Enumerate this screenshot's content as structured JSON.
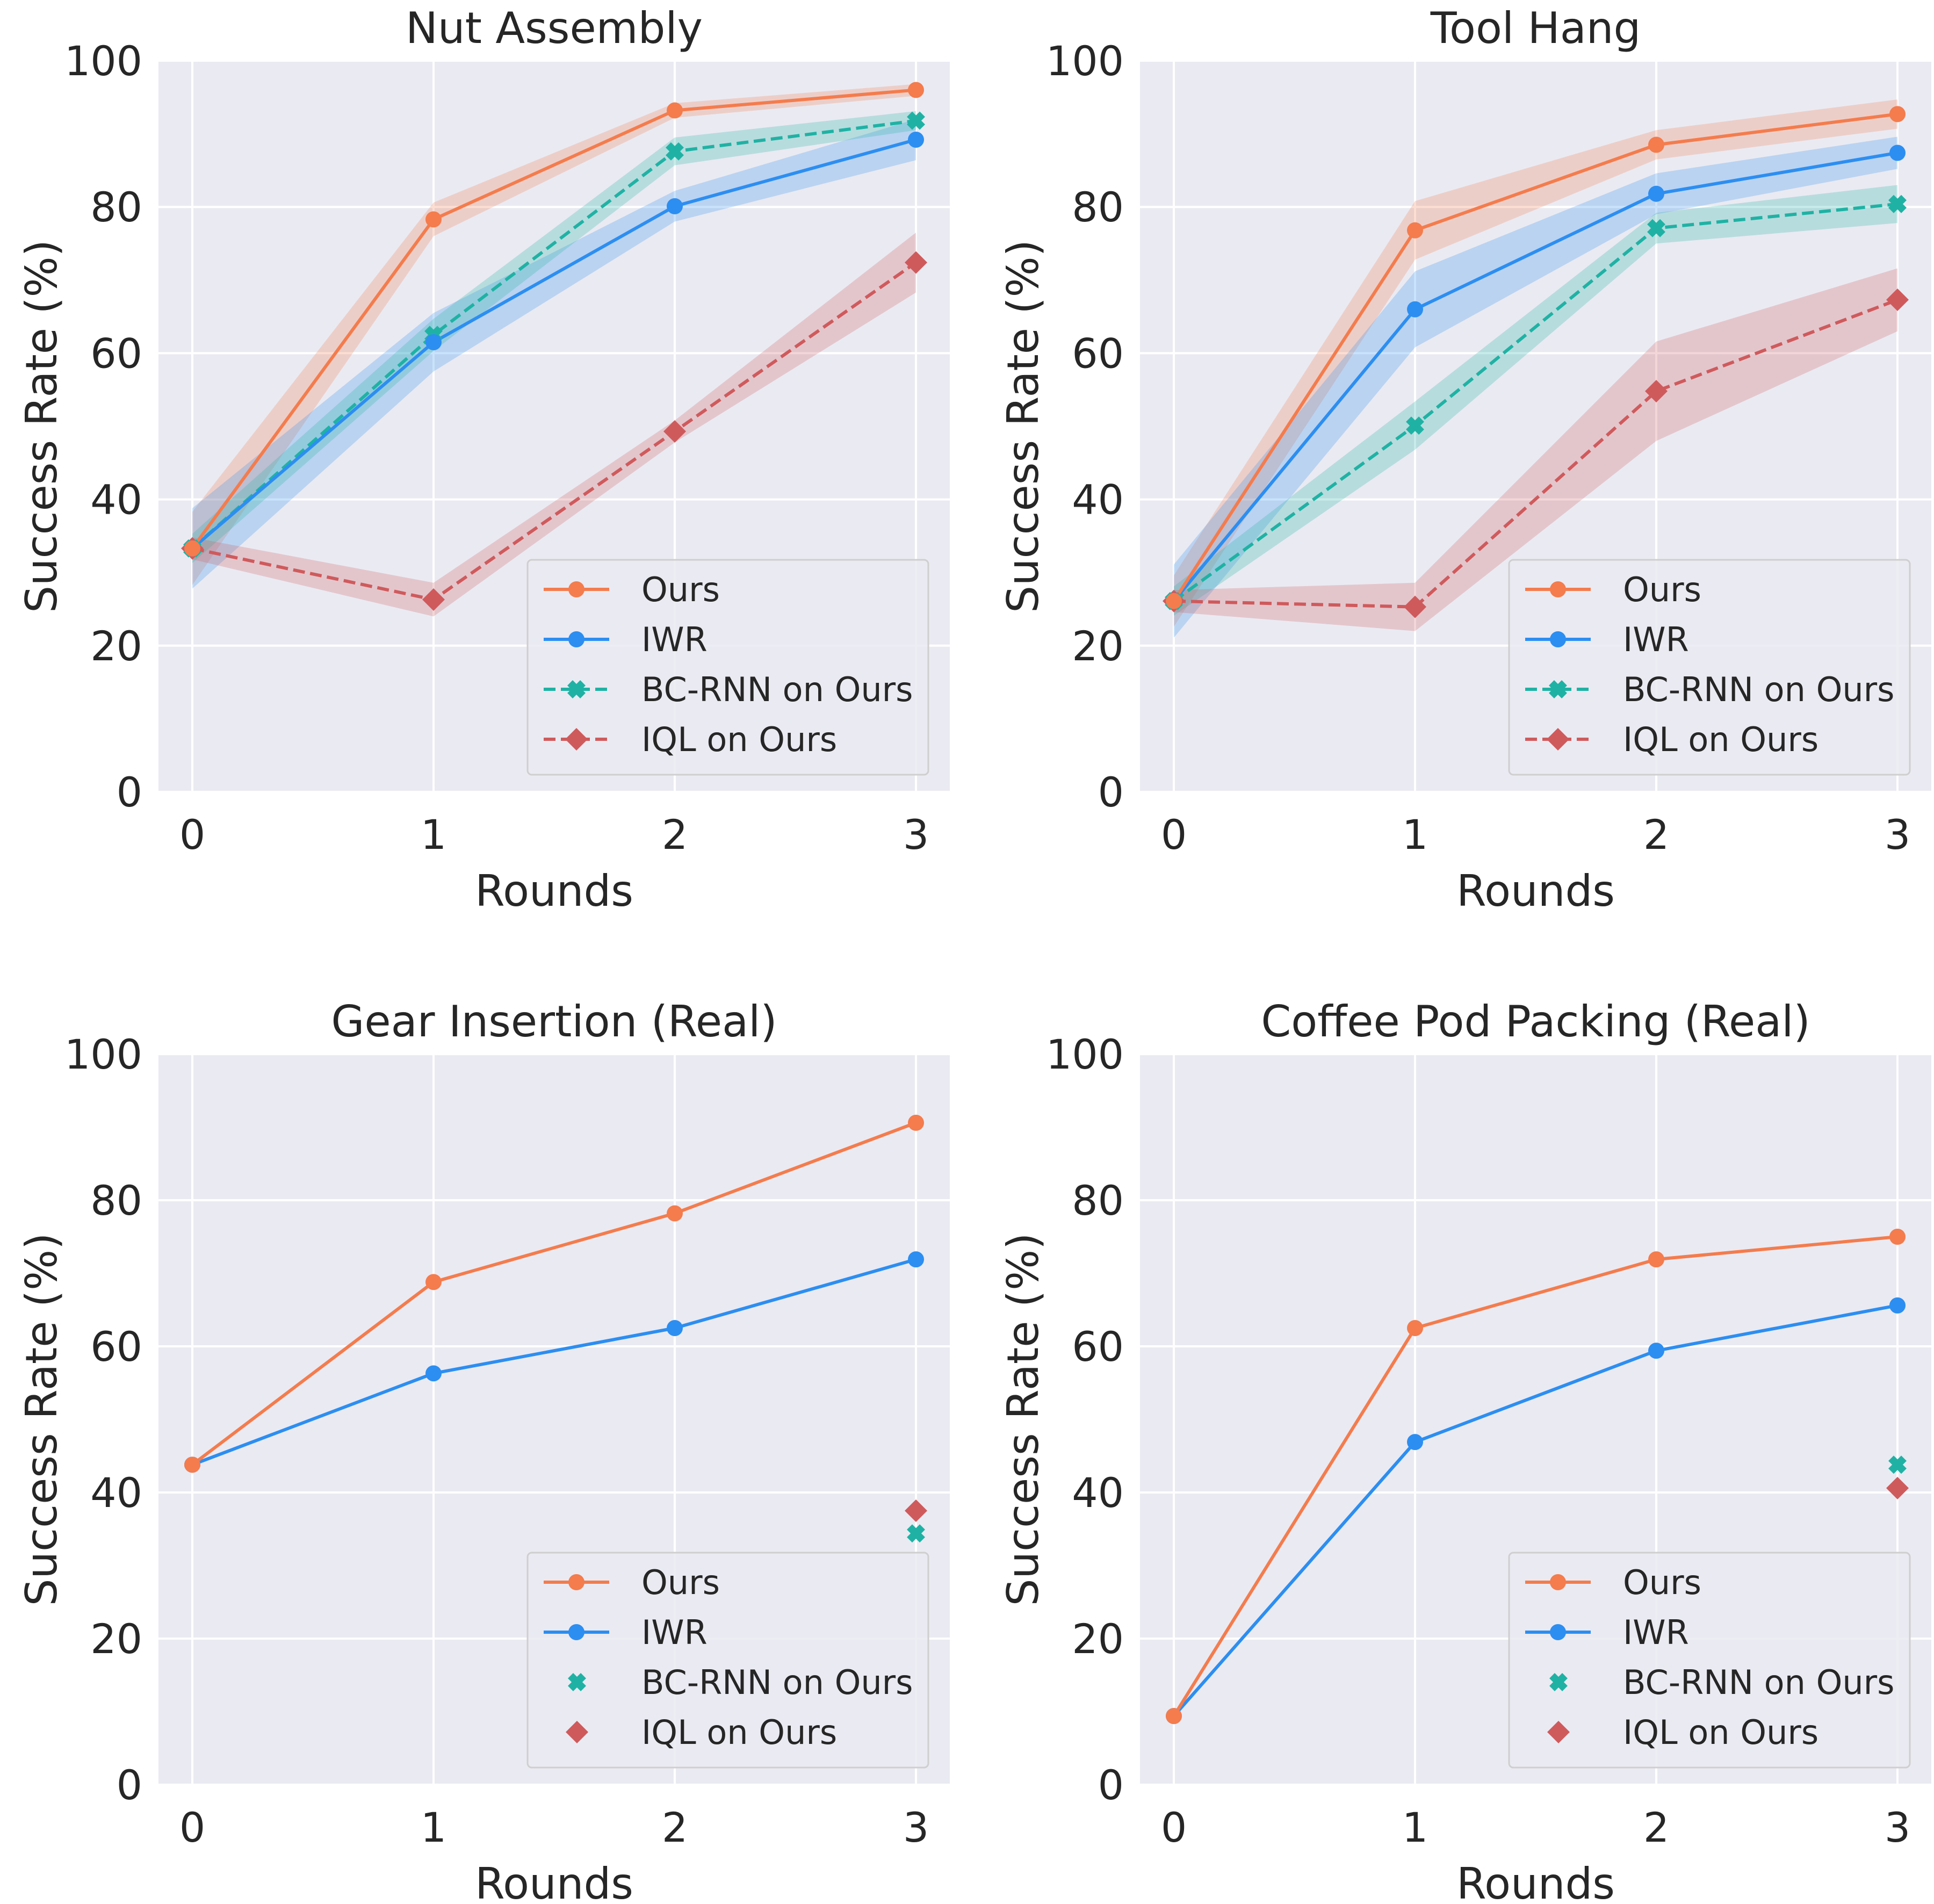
{
  "chart_data": [
    {
      "type": "line",
      "title": "Nut Assembly",
      "xlabel": "Rounds",
      "ylabel": "Success Rate (%)",
      "x": [
        0,
        1,
        2,
        3
      ],
      "xticks": [
        "0",
        "1",
        "2",
        "3"
      ],
      "yticks": [
        "0",
        "20",
        "40",
        "60",
        "80",
        "100"
      ],
      "ylim": [
        0,
        100
      ],
      "grid": true,
      "legend_position": "lower-right",
      "series": [
        {
          "name": "Ours",
          "color": "#f47c4d",
          "marker": "circle",
          "dash": false,
          "values": [
            33.3,
            78.3,
            93.2,
            96.0
          ],
          "lower": [
            28.3,
            76.0,
            92.2,
            95.2
          ],
          "upper": [
            38.3,
            80.6,
            94.2,
            96.8
          ]
        },
        {
          "name": "IWR",
          "color": "#2c8ef1",
          "marker": "circle",
          "dash": false,
          "values": [
            33.3,
            61.5,
            80.1,
            89.2
          ],
          "lower": [
            27.8,
            57.5,
            78.0,
            86.4
          ],
          "upper": [
            38.8,
            65.5,
            82.2,
            92.0
          ]
        },
        {
          "name": "BC-RNN on Ours",
          "color": "#1fb2a4",
          "marker": "x",
          "dash": true,
          "values": [
            33.3,
            62.5,
            87.6,
            91.8
          ],
          "lower": [
            31.3,
            60.3,
            85.7,
            90.5
          ],
          "upper": [
            35.3,
            64.7,
            89.5,
            93.1
          ]
        },
        {
          "name": "IQL on Ours",
          "color": "#cf5a5c",
          "marker": "diamond",
          "dash": true,
          "values": [
            33.3,
            26.3,
            49.3,
            72.4
          ],
          "lower": [
            31.8,
            24.0,
            47.8,
            68.3
          ],
          "upper": [
            34.8,
            28.6,
            50.8,
            76.5
          ]
        }
      ]
    },
    {
      "type": "line",
      "title": "Tool Hang",
      "xlabel": "Rounds",
      "ylabel": "Success Rate (%)",
      "x": [
        0,
        1,
        2,
        3
      ],
      "xticks": [
        "0",
        "1",
        "2",
        "3"
      ],
      "yticks": [
        "0",
        "20",
        "40",
        "60",
        "80",
        "100"
      ],
      "ylim": [
        0,
        100
      ],
      "grid": true,
      "legend_position": "lower-right",
      "series": [
        {
          "name": "Ours",
          "color": "#f47c4d",
          "marker": "circle",
          "dash": false,
          "values": [
            26.1,
            76.8,
            88.5,
            92.7
          ],
          "lower": [
            22.6,
            72.8,
            86.5,
            90.7
          ],
          "upper": [
            29.6,
            80.8,
            90.5,
            94.7
          ]
        },
        {
          "name": "IWR",
          "color": "#2c8ef1",
          "marker": "circle",
          "dash": false,
          "values": [
            26.1,
            66.0,
            81.8,
            87.4
          ],
          "lower": [
            21.1,
            60.8,
            79.0,
            85.2
          ],
          "upper": [
            31.1,
            71.2,
            84.6,
            89.6
          ]
        },
        {
          "name": "BC-RNN on Ours",
          "color": "#1fb2a4",
          "marker": "x",
          "dash": true,
          "values": [
            26.1,
            50.1,
            77.1,
            80.4
          ],
          "lower": [
            24.1,
            46.8,
            75.0,
            77.8
          ],
          "upper": [
            28.1,
            53.4,
            79.2,
            83.0
          ]
        },
        {
          "name": "IQL on Ours",
          "color": "#cf5a5c",
          "marker": "diamond",
          "dash": true,
          "values": [
            26.1,
            25.3,
            54.8,
            67.3
          ],
          "lower": [
            24.6,
            22.0,
            48.0,
            63.0
          ],
          "upper": [
            27.6,
            28.6,
            61.6,
            71.6
          ]
        }
      ]
    },
    {
      "type": "line",
      "title": "Gear Insertion (Real)",
      "xlabel": "Rounds",
      "ylabel": "Success Rate (%)",
      "x": [
        0,
        1,
        2,
        3
      ],
      "xticks": [
        "0",
        "1",
        "2",
        "3"
      ],
      "yticks": [
        "0",
        "20",
        "40",
        "60",
        "80",
        "100"
      ],
      "ylim": [
        0,
        100
      ],
      "grid": true,
      "legend_position": "lower-right",
      "series": [
        {
          "name": "Ours",
          "color": "#f47c4d",
          "marker": "circle",
          "line": true,
          "values": [
            43.8,
            68.8,
            78.2,
            90.6
          ]
        },
        {
          "name": "IWR",
          "color": "#2c8ef1",
          "marker": "circle",
          "line": true,
          "values": [
            43.8,
            56.3,
            62.5,
            71.9
          ]
        },
        {
          "name": "BC-RNN on Ours",
          "color": "#1fb2a4",
          "marker": "x",
          "line": false,
          "points": [
            [
              3,
              34.4
            ]
          ]
        },
        {
          "name": "IQL on Ours",
          "color": "#cf5a5c",
          "marker": "diamond",
          "line": false,
          "points": [
            [
              3,
              37.5
            ]
          ]
        }
      ]
    },
    {
      "type": "line",
      "title": "Coffee Pod Packing (Real)",
      "xlabel": "Rounds",
      "ylabel": "Success Rate (%)",
      "x": [
        0,
        1,
        2,
        3
      ],
      "xticks": [
        "0",
        "1",
        "2",
        "3"
      ],
      "yticks": [
        "0",
        "20",
        "40",
        "60",
        "80",
        "100"
      ],
      "ylim": [
        0,
        100
      ],
      "grid": true,
      "legend_position": "lower-right",
      "series": [
        {
          "name": "Ours",
          "color": "#f47c4d",
          "marker": "circle",
          "line": true,
          "values": [
            9.4,
            62.5,
            71.9,
            75.0
          ]
        },
        {
          "name": "IWR",
          "color": "#2c8ef1",
          "marker": "circle",
          "line": true,
          "values": [
            9.4,
            46.9,
            59.4,
            65.6
          ]
        },
        {
          "name": "BC-RNN on Ours",
          "color": "#1fb2a4",
          "marker": "x",
          "line": false,
          "points": [
            [
              3,
              43.8
            ]
          ]
        },
        {
          "name": "IQL on Ours",
          "color": "#cf5a5c",
          "marker": "diamond",
          "line": false,
          "points": [
            [
              3,
              40.6
            ]
          ]
        }
      ]
    }
  ]
}
